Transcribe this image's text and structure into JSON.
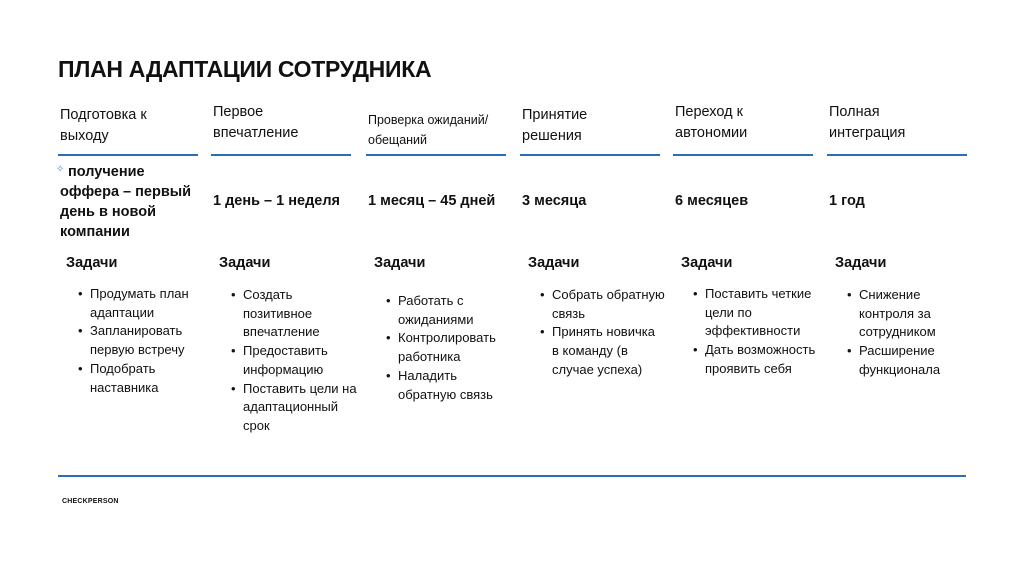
{
  "title": "ПЛАН АДАПТАЦИИ СОТРУДНИКА",
  "columns": [
    {
      "header": "Подготовка к выходу",
      "duration": "получение оффера – первый день в новой компании",
      "tasks_label": "Задачи",
      "tasks": [
        "Продумать план адаптации",
        "Запланировать первую встречу",
        "Подобрать наставника"
      ]
    },
    {
      "header": "Первое впечатление",
      "duration": "1 день – 1 неделя",
      "tasks_label": "Задачи",
      "tasks": [
        "Создать позитивное впечатление",
        "Предоставить информацию",
        "Поставить цели на адаптационный срок"
      ]
    },
    {
      "header": "Проверка ожиданий/ обещаний",
      "duration": "1 месяц – 45 дней",
      "tasks_label": "Задачи",
      "tasks": [
        "Работать с ожиданиями",
        "Контролировать работника",
        "Наладить обратную связь"
      ]
    },
    {
      "header": "Принятие решения",
      "duration": "3 месяца",
      "tasks_label": "Задачи",
      "tasks": [
        "Собрать обратную связь",
        "Принять новичка в команду (в случае успеха)"
      ]
    },
    {
      "header": "Переход к автономии",
      "duration": "6 месяцев",
      "tasks_label": "Задачи",
      "tasks": [
        "Поставить четкие цели по эффективности",
        "Дать возможность проявить себя"
      ]
    },
    {
      "header": "Полная интеграция",
      "duration": "1 год",
      "tasks_label": "Задачи",
      "tasks": [
        " Снижение контроля за сотрудником",
        "Расширение функционала"
      ]
    }
  ],
  "footer": "CHECKPERSON",
  "colors": {
    "accent": "#2a6fb5"
  }
}
